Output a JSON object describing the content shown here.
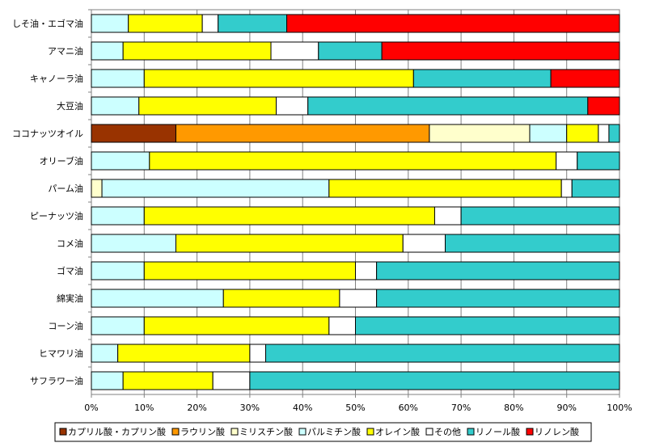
{
  "chart_data": {
    "type": "bar",
    "orientation": "horizontal",
    "stacked": "percent",
    "title": "",
    "xlabel": "",
    "ylabel": "",
    "xlim": [
      0,
      100
    ],
    "x_ticks": [
      "0%",
      "10%",
      "20%",
      "30%",
      "40%",
      "50%",
      "60%",
      "70%",
      "80%",
      "90%",
      "100%"
    ],
    "grid": true,
    "legend_position": "bottom",
    "categories": [
      "しそ油・エゴマ油",
      "アマニ油",
      "キャノーラ油",
      "大豆油",
      "ココナッツオイル",
      "オリーブ油",
      "パーム油",
      "ピーナッツ油",
      "コメ油",
      "ゴマ油",
      "綿実油",
      "コーン油",
      "ヒマワリ油",
      "サフラワー油"
    ],
    "series": [
      {
        "name": "カプリル酸・カプリン酸",
        "color": "#993300",
        "values": [
          0,
          0,
          0,
          0,
          16,
          0,
          0,
          0,
          0,
          0,
          0,
          0,
          0,
          0
        ]
      },
      {
        "name": "ラウリン酸",
        "color": "#FF9900",
        "values": [
          0,
          0,
          0,
          0,
          48,
          0,
          0,
          0,
          0,
          0,
          0,
          0,
          0,
          0
        ]
      },
      {
        "name": "ミリスチン酸",
        "color": "#FFFFCC",
        "values": [
          0,
          0,
          0,
          0,
          19,
          0,
          2,
          0,
          0,
          0,
          0,
          0,
          0,
          0
        ]
      },
      {
        "name": "パルミチン酸",
        "color": "#CCFFFF",
        "values": [
          7,
          6,
          10,
          9,
          7,
          11,
          43,
          10,
          16,
          10,
          25,
          10,
          5,
          6
        ]
      },
      {
        "name": "オレイン酸",
        "color": "#FFFF00",
        "values": [
          14,
          28,
          51,
          26,
          6,
          77,
          44,
          55,
          43,
          40,
          22,
          35,
          25,
          17
        ]
      },
      {
        "name": "その他",
        "color": "#FFFFFF",
        "values": [
          3,
          9,
          0,
          6,
          2,
          4,
          2,
          5,
          8,
          4,
          7,
          5,
          3,
          7
        ]
      },
      {
        "name": "リノール酸",
        "color": "#33CCCC",
        "values": [
          13,
          12,
          26,
          53,
          2,
          8,
          9,
          30,
          33,
          46,
          46,
          50,
          67,
          70
        ]
      },
      {
        "name": "リノレン酸",
        "color": "#FF0000",
        "values": [
          63,
          45,
          13,
          6,
          0,
          0,
          0,
          0,
          0,
          0,
          0,
          0,
          0,
          0
        ]
      }
    ]
  }
}
